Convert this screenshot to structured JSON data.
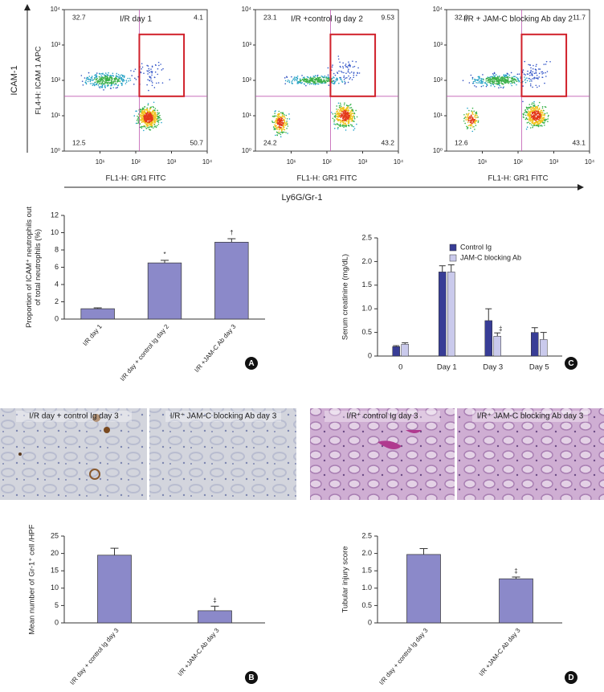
{
  "flow": {
    "xlabel": "FL1-H: GR1 FITC",
    "ylabel": "FL4-H: ICAM 1 APC",
    "xticks": [
      {
        "value": 1,
        "label": "10¹"
      },
      {
        "value": 2,
        "label": "10²"
      },
      {
        "value": 3,
        "label": "10³"
      },
      {
        "value": 4,
        "label": "10⁴"
      }
    ],
    "yticks": [
      {
        "value": 0,
        "label": "10⁰"
      },
      {
        "value": 1,
        "label": "10¹"
      },
      {
        "value": 2,
        "label": "10²"
      },
      {
        "value": 3,
        "label": "10³"
      },
      {
        "value": 4,
        "label": "10⁴"
      }
    ],
    "lim": [
      0,
      4
    ],
    "panels": [
      {
        "title": "I/R day 1",
        "quadrants": [
          32.7,
          4.1,
          12.5,
          50.7
        ]
      },
      {
        "title": "I/R +control Ig day 2",
        "quadrants": [
          23.1,
          9.53,
          24.2,
          43.2
        ]
      },
      {
        "title": "I/R + JAM-C blocking Ab day 2",
        "quadrants": [
          32.6,
          11.7,
          12.6,
          43.1
        ]
      }
    ],
    "big_ylabel": "ICAM-1",
    "big_xlabel": "Ly6G/Gr-1"
  },
  "histology": [
    "I/R day + control Ig day 3",
    "I/R⁺ JAM-C blocking Ab day 3",
    "I/R⁺ control Ig day 3",
    "I/R⁺ JAM-C blocking Ab day 3"
  ],
  "chart_data": [
    {
      "type": "bar",
      "panel": "A",
      "ylabel": [
        "Proportion of ICAM⁺ neutrophils out",
        "of total neutrophils (%)"
      ],
      "categories": [
        "I/R day 1",
        "I/R day + control Ig day 2",
        "I/R +JAM-C Ab day 3"
      ],
      "values": [
        1.2,
        6.5,
        8.9
      ],
      "errors": [
        0.1,
        0.3,
        0.4
      ],
      "annotations": [
        null,
        "*",
        "†"
      ],
      "color": "#8b89c9",
      "ylim": [
        0,
        12
      ],
      "yticks": [
        0,
        2,
        4,
        6,
        8,
        10,
        12
      ]
    },
    {
      "type": "grouped_bar",
      "panel": "C",
      "ylabel": [
        "Serum creatinine (mg/dL)"
      ],
      "categories": [
        "0",
        "Day 1",
        "Day 3",
        "Day 5"
      ],
      "series": [
        {
          "name": "Control Ig",
          "color": "#383d96",
          "values": [
            0.2,
            1.78,
            0.75,
            0.5
          ],
          "errors": [
            0.02,
            0.13,
            0.25,
            0.1
          ],
          "annotations": [
            null,
            null,
            null,
            null
          ]
        },
        {
          "name": "JAM-C blocking Ab",
          "color": "#cacaec",
          "values": [
            0.25,
            1.78,
            0.42,
            0.35
          ],
          "errors": [
            0.03,
            0.15,
            0.07,
            0.15
          ],
          "annotations": [
            null,
            null,
            "‡",
            null
          ]
        }
      ],
      "legend": "upper right",
      "ylim": [
        0,
        2.5
      ],
      "yticks": [
        0,
        0.5,
        {
          "value": 1,
          "label": "1.0"
        },
        1.5,
        {
          "value": 2,
          "label": "2.0"
        },
        2.5
      ]
    },
    {
      "type": "bar",
      "panel": "B",
      "ylabel": [
        "Mean number of Gr-1⁺ cell /HPF"
      ],
      "categories": [
        "I/R day + control Ig day 3",
        "I/R +JAM-C Ab day 3"
      ],
      "values": [
        19.5,
        3.5
      ],
      "errors": [
        2,
        1.3
      ],
      "annotations": [
        null,
        "‡"
      ],
      "color": "#8b89c9",
      "ylim": [
        0,
        25
      ],
      "yticks": [
        0,
        5,
        10,
        15,
        20,
        25
      ]
    },
    {
      "type": "bar",
      "panel": "D",
      "ylabel": [
        "Tubular injury score"
      ],
      "categories": [
        "I/R day + control Ig day 3",
        "I/R +JAM-C Ab day 3"
      ],
      "values": [
        1.97,
        1.27
      ],
      "errors": [
        0.17,
        0.05
      ],
      "annotations": [
        null,
        "‡"
      ],
      "color": "#8b89c9",
      "ylim": [
        0,
        2.5
      ],
      "yticks": [
        0,
        0.5,
        {
          "value": 1,
          "label": "1.0"
        },
        1.5,
        {
          "value": 2,
          "label": "2.0"
        },
        2.5
      ]
    }
  ]
}
